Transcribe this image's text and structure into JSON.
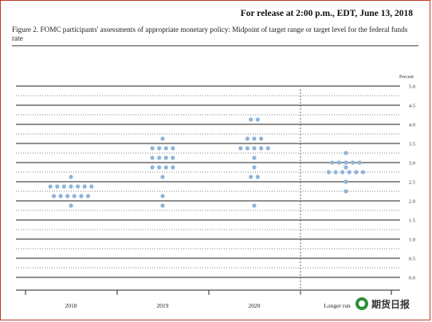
{
  "header": {
    "release_text": "For release at 2:00 p.m., EDT, June 13, 2018",
    "figure_title": "Figure 2.  FOMC participants' assessments of appropriate monetary policy: Midpoint of target range or target level for the federal funds rate"
  },
  "watermark": {
    "text": "期货日报"
  },
  "chart_data": {
    "type": "scatter",
    "title": "",
    "xlabel": "",
    "ylabel": "Percent",
    "ylim": [
      0,
      5
    ],
    "yticks": [
      "5.0",
      "4.5",
      "4.0",
      "3.5",
      "3.0",
      "2.5",
      "2.0",
      "1.5",
      "1.0",
      "0.5",
      "0.0"
    ],
    "categories": [
      "2018",
      "2019",
      "2020",
      "Longer run"
    ],
    "grid": true,
    "marker_color": "#8fb4d9",
    "series": [
      {
        "category": "2018",
        "levels": [
          {
            "y": 2.625,
            "count": 1
          },
          {
            "y": 2.375,
            "count": 7
          },
          {
            "y": 2.125,
            "count": 6
          },
          {
            "y": 1.875,
            "count": 1
          }
        ]
      },
      {
        "category": "2019",
        "levels": [
          {
            "y": 3.625,
            "count": 1
          },
          {
            "y": 3.375,
            "count": 4
          },
          {
            "y": 3.125,
            "count": 4
          },
          {
            "y": 2.875,
            "count": 4
          },
          {
            "y": 2.625,
            "count": 1
          },
          {
            "y": 2.125,
            "count": 1
          },
          {
            "y": 1.875,
            "count": 1
          }
        ]
      },
      {
        "category": "2020",
        "levels": [
          {
            "y": 4.125,
            "count": 2
          },
          {
            "y": 3.625,
            "count": 3
          },
          {
            "y": 3.375,
            "count": 5
          },
          {
            "y": 3.125,
            "count": 1
          },
          {
            "y": 2.875,
            "count": 1
          },
          {
            "y": 2.625,
            "count": 2
          },
          {
            "y": 1.875,
            "count": 1
          }
        ]
      },
      {
        "category": "Longer run",
        "levels": [
          {
            "y": 3.25,
            "count": 1
          },
          {
            "y": 3.0,
            "count": 5
          },
          {
            "y": 2.875,
            "count": 1
          },
          {
            "y": 2.75,
            "count": 6
          },
          {
            "y": 2.5,
            "count": 1
          },
          {
            "y": 2.25,
            "count": 1
          }
        ]
      }
    ]
  }
}
